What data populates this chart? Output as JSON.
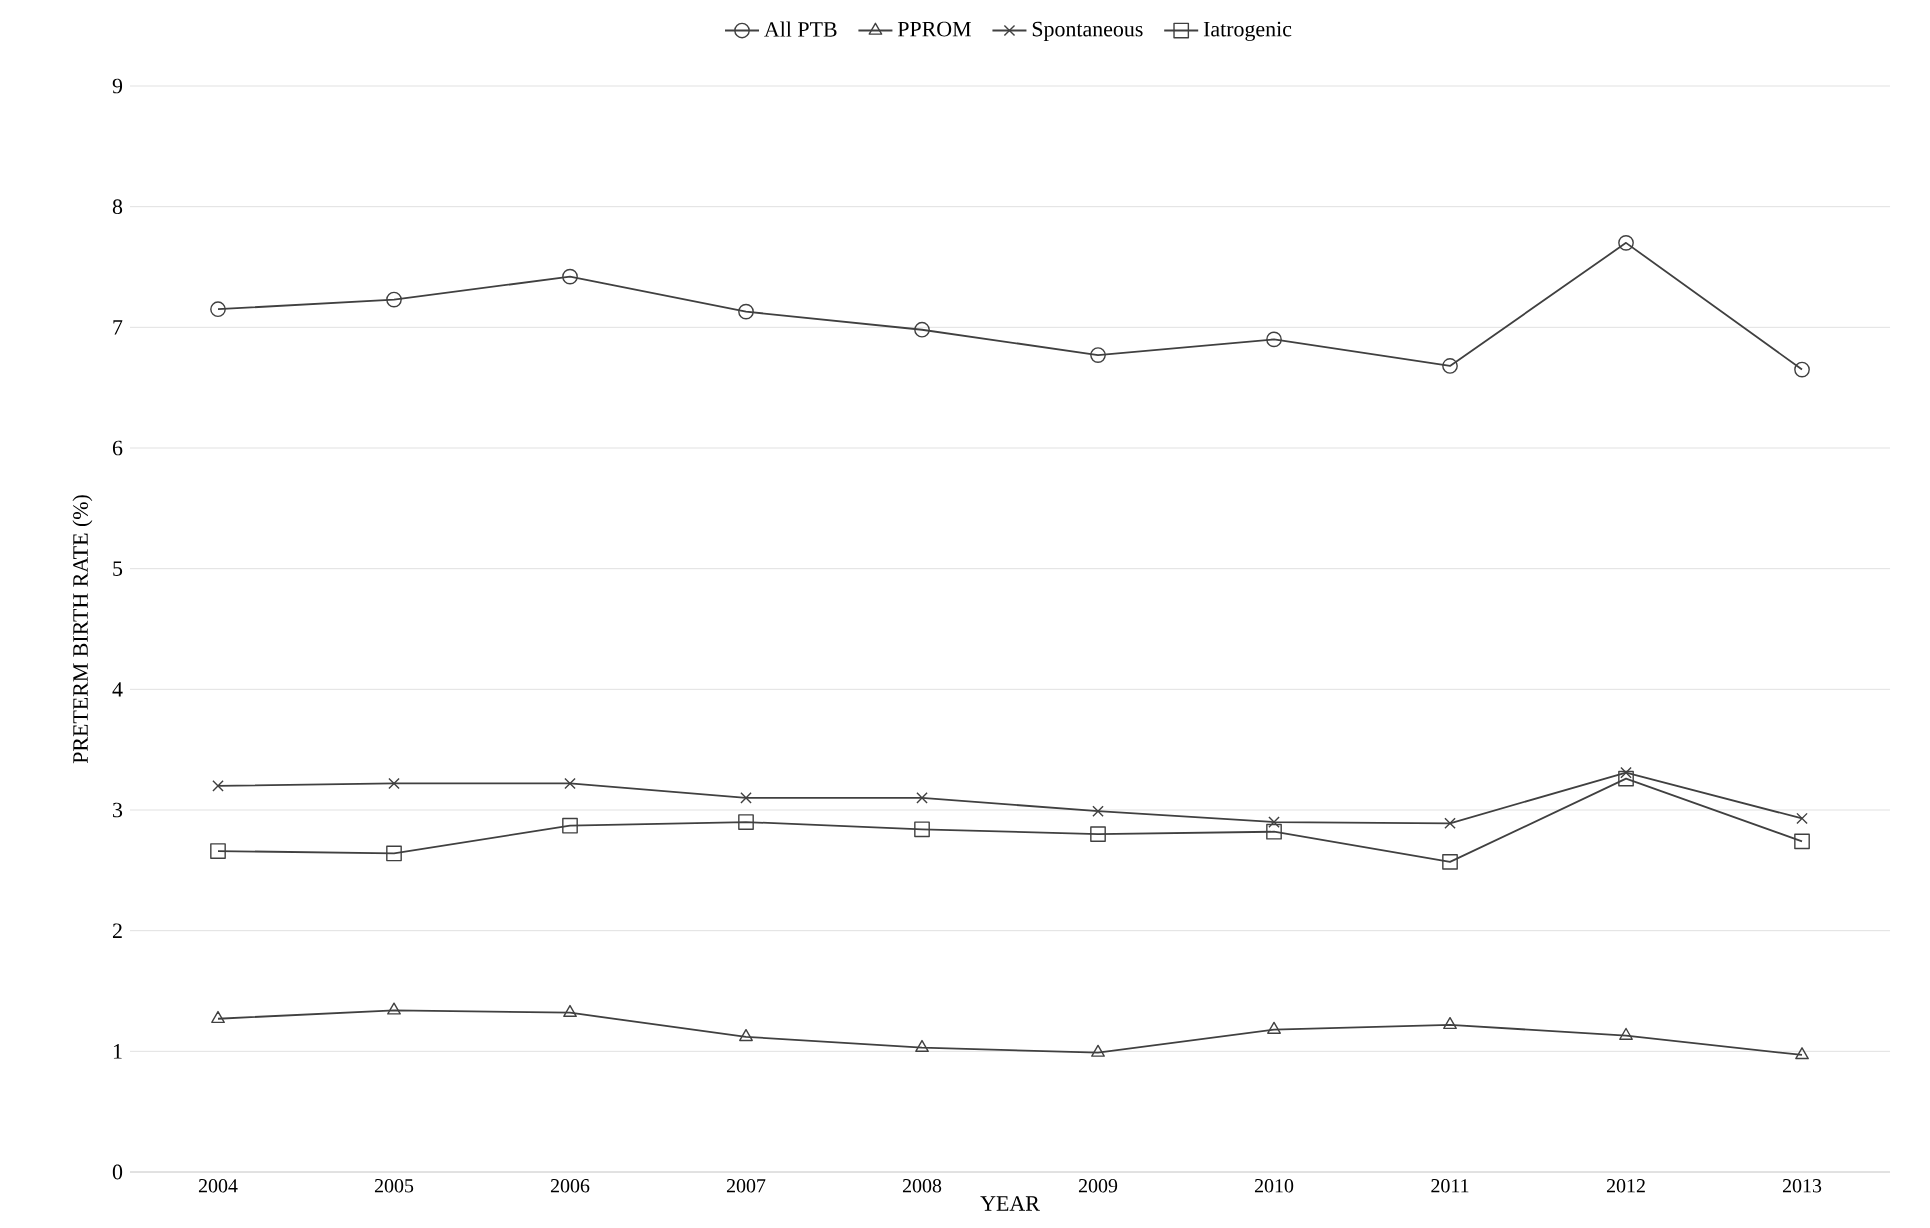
{
  "chart_data": {
    "type": "line",
    "xlabel": "YEAR",
    "ylabel": "PRETERM BIRTH RATE (%)",
    "categories": [
      "2004",
      "2005",
      "2006",
      "2007",
      "2008",
      "2009",
      "2010",
      "2011",
      "2012",
      "2013"
    ],
    "series": [
      {
        "name": "All PTB",
        "color": "#404040",
        "marker": "circle",
        "values": [
          7.15,
          7.23,
          7.42,
          7.13,
          6.98,
          6.77,
          6.9,
          6.68,
          7.7,
          6.65
        ]
      },
      {
        "name": "PPROM",
        "color": "#404040",
        "marker": "triangle",
        "values": [
          1.27,
          1.34,
          1.32,
          1.12,
          1.03,
          0.99,
          1.18,
          1.22,
          1.13,
          0.97
        ]
      },
      {
        "name": "Spontaneous",
        "color": "#404040",
        "marker": "cross",
        "values": [
          3.2,
          3.22,
          3.22,
          3.1,
          3.1,
          2.99,
          2.9,
          2.89,
          3.31,
          2.93
        ]
      },
      {
        "name": "Iatrogenic",
        "color": "#404040",
        "marker": "square",
        "values": [
          2.66,
          2.64,
          2.87,
          2.9,
          2.84,
          2.8,
          2.82,
          2.57,
          3.26,
          2.74
        ]
      }
    ],
    "ylim": [
      0,
      9
    ],
    "yticks": [
      0,
      1,
      2,
      3,
      4,
      5,
      6,
      7,
      8,
      9
    ],
    "grid": "y",
    "legend": "top",
    "line_style": "solid"
  }
}
